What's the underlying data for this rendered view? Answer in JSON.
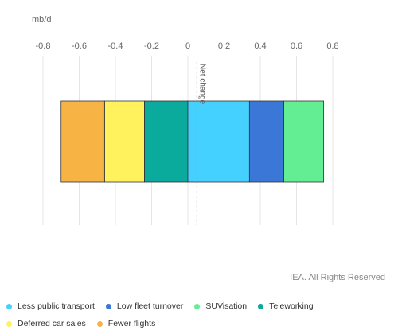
{
  "chart_data": {
    "type": "bar",
    "orientation": "horizontal-stacked",
    "unit_label": "mb/d",
    "xlim": [
      -0.8,
      0.8
    ],
    "x_ticks": [
      -0.8,
      -0.6,
      -0.4,
      -0.2,
      0,
      0.2,
      0.4,
      0.6,
      0.8
    ],
    "tick_labels": [
      "-0.8",
      "-0.6",
      "-0.4",
      "-0.2",
      "0",
      "0.2",
      "0.4",
      "0.6",
      "0.8"
    ],
    "grid": true,
    "segments": [
      {
        "name": "Fewer flights",
        "value": -0.24,
        "color": "#F7B344"
      },
      {
        "name": "Deferred car sales",
        "value": -0.22,
        "color": "#FFF25C"
      },
      {
        "name": "Teleworking",
        "value": -0.24,
        "color": "#0AAA9D"
      },
      {
        "name": "Less public transport",
        "value": 0.34,
        "color": "#45D1FF"
      },
      {
        "name": "Low fleet turnover",
        "value": 0.19,
        "color": "#3A77D6"
      },
      {
        "name": "SUVisation",
        "value": 0.22,
        "color": "#64EE93"
      }
    ],
    "net_change": {
      "label": "Net change",
      "value": 0.05
    },
    "legend_position": "bottom"
  },
  "legend": [
    {
      "label": "Less public transport",
      "color": "#45D1FF"
    },
    {
      "label": "Low fleet turnover",
      "color": "#3A77D6"
    },
    {
      "label": "SUVisation",
      "color": "#64EE93"
    },
    {
      "label": "Teleworking",
      "color": "#0AAA9D"
    },
    {
      "label": "Deferred car sales",
      "color": "#FFF25C"
    },
    {
      "label": "Fewer flights",
      "color": "#F7B344"
    }
  ],
  "credit": "IEA. All Rights Reserved"
}
